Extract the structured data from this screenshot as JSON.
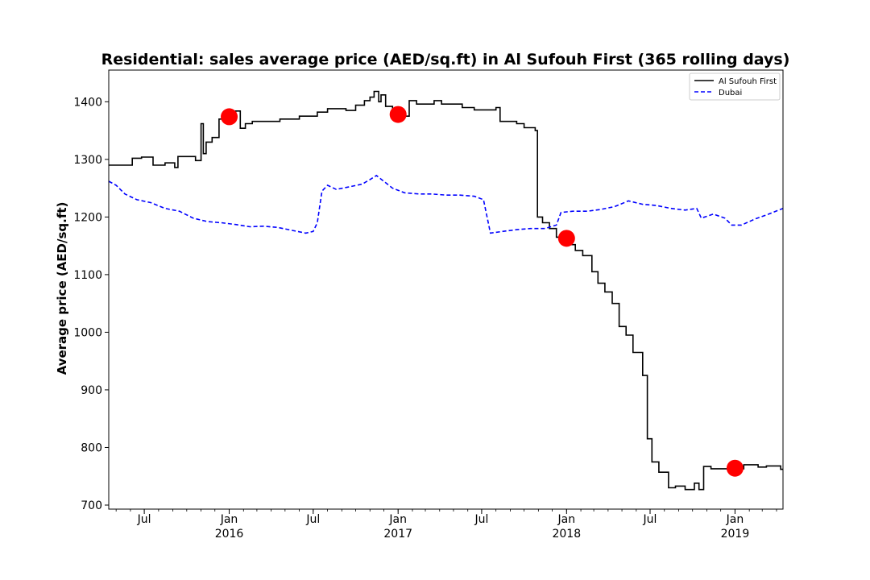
{
  "chart_data": {
    "type": "line",
    "title": "Residential: sales average price (AED/sq.ft) in Al Sufouh First (365 rolling days)",
    "xlabel": "",
    "ylabel": "Average price (AED/sq.ft)",
    "x_range": [
      "2015-04-15",
      "2019-04-15"
    ],
    "ylim": [
      693,
      1455
    ],
    "y_ticks": [
      700,
      800,
      900,
      1000,
      1100,
      1200,
      1300,
      1400
    ],
    "x_ticks": [
      {
        "date": "2015-07-01",
        "label": "Jul",
        "sublabel": ""
      },
      {
        "date": "2016-01-01",
        "label": "Jan",
        "sublabel": "2016"
      },
      {
        "date": "2016-07-01",
        "label": "Jul",
        "sublabel": ""
      },
      {
        "date": "2017-01-01",
        "label": "Jan",
        "sublabel": "2017"
      },
      {
        "date": "2017-07-01",
        "label": "Jul",
        "sublabel": ""
      },
      {
        "date": "2018-01-01",
        "label": "Jan",
        "sublabel": "2018"
      },
      {
        "date": "2018-07-01",
        "label": "Jul",
        "sublabel": ""
      },
      {
        "date": "2019-01-01",
        "label": "Jan",
        "sublabel": "2019"
      }
    ],
    "legend": {
      "position": "top-right"
    },
    "grid": false,
    "series": [
      {
        "name": "Al Sufouh First",
        "color": "#000000",
        "style": "solid",
        "step": true,
        "points": [
          [
            "2015-04-15",
            1290
          ],
          [
            "2015-06-05",
            1290
          ],
          [
            "2015-06-05",
            1302
          ],
          [
            "2015-06-25",
            1302
          ],
          [
            "2015-06-25",
            1304
          ],
          [
            "2015-07-20",
            1304
          ],
          [
            "2015-07-20",
            1290
          ],
          [
            "2015-08-15",
            1290
          ],
          [
            "2015-08-15",
            1294
          ],
          [
            "2015-09-05",
            1294
          ],
          [
            "2015-09-05",
            1286
          ],
          [
            "2015-09-12",
            1286
          ],
          [
            "2015-09-12",
            1305
          ],
          [
            "2015-10-20",
            1305
          ],
          [
            "2015-10-20",
            1298
          ],
          [
            "2015-11-01",
            1298
          ],
          [
            "2015-11-01",
            1362
          ],
          [
            "2015-11-06",
            1362
          ],
          [
            "2015-11-06",
            1310
          ],
          [
            "2015-11-12",
            1310
          ],
          [
            "2015-11-12",
            1330
          ],
          [
            "2015-11-25",
            1330
          ],
          [
            "2015-11-25",
            1338
          ],
          [
            "2015-12-10",
            1338
          ],
          [
            "2015-12-10",
            1370
          ],
          [
            "2016-01-15",
            1370
          ],
          [
            "2016-01-15",
            1384
          ],
          [
            "2016-01-25",
            1384
          ],
          [
            "2016-01-25",
            1354
          ],
          [
            "2016-02-05",
            1354
          ],
          [
            "2016-02-05",
            1362
          ],
          [
            "2016-02-20",
            1362
          ],
          [
            "2016-02-20",
            1366
          ],
          [
            "2016-04-20",
            1366
          ],
          [
            "2016-04-20",
            1370
          ],
          [
            "2016-06-01",
            1370
          ],
          [
            "2016-06-01",
            1375
          ],
          [
            "2016-07-10",
            1375
          ],
          [
            "2016-07-10",
            1382
          ],
          [
            "2016-08-01",
            1382
          ],
          [
            "2016-08-01",
            1388
          ],
          [
            "2016-09-10",
            1388
          ],
          [
            "2016-09-10",
            1385
          ],
          [
            "2016-10-01",
            1385
          ],
          [
            "2016-10-01",
            1394
          ],
          [
            "2016-10-20",
            1394
          ],
          [
            "2016-10-20",
            1402
          ],
          [
            "2016-11-01",
            1402
          ],
          [
            "2016-11-01",
            1408
          ],
          [
            "2016-11-10",
            1408
          ],
          [
            "2016-11-10",
            1418
          ],
          [
            "2016-11-20",
            1418
          ],
          [
            "2016-11-20",
            1400
          ],
          [
            "2016-11-25",
            1400
          ],
          [
            "2016-11-25",
            1412
          ],
          [
            "2016-12-05",
            1412
          ],
          [
            "2016-12-05",
            1392
          ],
          [
            "2016-12-20",
            1392
          ],
          [
            "2016-12-20",
            1384
          ],
          [
            "2017-01-15",
            1384
          ],
          [
            "2017-01-15",
            1375
          ],
          [
            "2017-01-25",
            1375
          ],
          [
            "2017-01-25",
            1402
          ],
          [
            "2017-02-10",
            1402
          ],
          [
            "2017-02-10",
            1396
          ],
          [
            "2017-03-20",
            1396
          ],
          [
            "2017-03-20",
            1402
          ],
          [
            "2017-04-05",
            1402
          ],
          [
            "2017-04-05",
            1396
          ],
          [
            "2017-05-20",
            1396
          ],
          [
            "2017-05-20",
            1390
          ],
          [
            "2017-06-15",
            1390
          ],
          [
            "2017-06-15",
            1386
          ],
          [
            "2017-08-01",
            1386
          ],
          [
            "2017-08-01",
            1390
          ],
          [
            "2017-08-10",
            1390
          ],
          [
            "2017-08-10",
            1366
          ],
          [
            "2017-09-15",
            1366
          ],
          [
            "2017-09-15",
            1362
          ],
          [
            "2017-10-01",
            1362
          ],
          [
            "2017-10-01",
            1355
          ],
          [
            "2017-10-25",
            1355
          ],
          [
            "2017-10-25",
            1350
          ],
          [
            "2017-10-30",
            1350
          ],
          [
            "2017-10-30",
            1200
          ],
          [
            "2017-11-10",
            1200
          ],
          [
            "2017-11-10",
            1190
          ],
          [
            "2017-11-25",
            1190
          ],
          [
            "2017-11-25",
            1180
          ],
          [
            "2017-12-10",
            1180
          ],
          [
            "2017-12-10",
            1165
          ],
          [
            "2018-01-01",
            1165
          ],
          [
            "2018-01-01",
            1152
          ],
          [
            "2018-01-20",
            1152
          ],
          [
            "2018-01-20",
            1142
          ],
          [
            "2018-02-05",
            1142
          ],
          [
            "2018-02-05",
            1133
          ],
          [
            "2018-02-25",
            1133
          ],
          [
            "2018-02-25",
            1105
          ],
          [
            "2018-03-10",
            1105
          ],
          [
            "2018-03-10",
            1085
          ],
          [
            "2018-03-25",
            1085
          ],
          [
            "2018-03-25",
            1070
          ],
          [
            "2018-04-10",
            1070
          ],
          [
            "2018-04-10",
            1050
          ],
          [
            "2018-04-25",
            1050
          ],
          [
            "2018-04-25",
            1010
          ],
          [
            "2018-05-10",
            1010
          ],
          [
            "2018-05-10",
            995
          ],
          [
            "2018-05-25",
            995
          ],
          [
            "2018-05-25",
            965
          ],
          [
            "2018-06-15",
            965
          ],
          [
            "2018-06-15",
            925
          ],
          [
            "2018-06-25",
            925
          ],
          [
            "2018-06-25",
            815
          ],
          [
            "2018-07-05",
            815
          ],
          [
            "2018-07-05",
            775
          ],
          [
            "2018-07-20",
            775
          ],
          [
            "2018-07-20",
            757
          ],
          [
            "2018-08-10",
            757
          ],
          [
            "2018-08-10",
            730
          ],
          [
            "2018-08-25",
            730
          ],
          [
            "2018-08-25",
            733
          ],
          [
            "2018-09-15",
            733
          ],
          [
            "2018-09-15",
            727
          ],
          [
            "2018-10-05",
            727
          ],
          [
            "2018-10-05",
            738
          ],
          [
            "2018-10-15",
            738
          ],
          [
            "2018-10-15",
            727
          ],
          [
            "2018-10-25",
            727
          ],
          [
            "2018-10-25",
            767
          ],
          [
            "2018-11-10",
            767
          ],
          [
            "2018-11-10",
            763
          ],
          [
            "2019-01-20",
            763
          ],
          [
            "2019-01-20",
            770
          ],
          [
            "2019-02-20",
            770
          ],
          [
            "2019-02-20",
            766
          ],
          [
            "2019-03-10",
            766
          ],
          [
            "2019-03-10",
            768
          ],
          [
            "2019-04-10",
            768
          ],
          [
            "2019-04-10",
            762
          ],
          [
            "2019-04-15",
            762
          ]
        ]
      },
      {
        "name": "Dubai",
        "color": "#0000ff",
        "style": "dashed",
        "step": false,
        "points": [
          [
            "2015-04-15",
            1262
          ],
          [
            "2015-05-01",
            1255
          ],
          [
            "2015-05-20",
            1240
          ],
          [
            "2015-06-15",
            1230
          ],
          [
            "2015-07-15",
            1225
          ],
          [
            "2015-08-15",
            1215
          ],
          [
            "2015-09-15",
            1210
          ],
          [
            "2015-10-15",
            1198
          ],
          [
            "2015-11-15",
            1192
          ],
          [
            "2015-12-15",
            1190
          ],
          [
            "2016-01-15",
            1187
          ],
          [
            "2016-02-15",
            1183
          ],
          [
            "2016-03-15",
            1184
          ],
          [
            "2016-04-15",
            1182
          ],
          [
            "2016-05-15",
            1177
          ],
          [
            "2016-06-15",
            1172
          ],
          [
            "2016-07-01",
            1175
          ],
          [
            "2016-07-10",
            1190
          ],
          [
            "2016-07-20",
            1245
          ],
          [
            "2016-08-01",
            1255
          ],
          [
            "2016-08-20",
            1248
          ],
          [
            "2016-09-15",
            1252
          ],
          [
            "2016-10-15",
            1257
          ],
          [
            "2016-11-01",
            1265
          ],
          [
            "2016-11-15",
            1272
          ],
          [
            "2016-12-01",
            1262
          ],
          [
            "2016-12-20",
            1250
          ],
          [
            "2017-01-15",
            1242
          ],
          [
            "2017-02-15",
            1240
          ],
          [
            "2017-03-15",
            1240
          ],
          [
            "2017-04-15",
            1238
          ],
          [
            "2017-05-15",
            1238
          ],
          [
            "2017-06-15",
            1236
          ],
          [
            "2017-07-05",
            1230
          ],
          [
            "2017-07-20",
            1172
          ],
          [
            "2017-08-15",
            1175
          ],
          [
            "2017-09-15",
            1178
          ],
          [
            "2017-10-15",
            1180
          ],
          [
            "2017-11-15",
            1180
          ],
          [
            "2017-12-10",
            1186
          ],
          [
            "2017-12-20",
            1208
          ],
          [
            "2018-01-15",
            1210
          ],
          [
            "2018-02-15",
            1210
          ],
          [
            "2018-03-15",
            1213
          ],
          [
            "2018-04-15",
            1218
          ],
          [
            "2018-05-15",
            1228
          ],
          [
            "2018-06-15",
            1222
          ],
          [
            "2018-07-15",
            1220
          ],
          [
            "2018-08-15",
            1215
          ],
          [
            "2018-09-15",
            1212
          ],
          [
            "2018-10-10",
            1215
          ],
          [
            "2018-10-20",
            1198
          ],
          [
            "2018-11-15",
            1205
          ],
          [
            "2018-12-10",
            1198
          ],
          [
            "2018-12-25",
            1186
          ],
          [
            "2019-01-15",
            1186
          ],
          [
            "2019-02-15",
            1197
          ],
          [
            "2019-03-15",
            1205
          ],
          [
            "2019-04-15",
            1215
          ]
        ]
      }
    ],
    "markers": {
      "color": "#ff0000",
      "points": [
        [
          "2016-01-01",
          1374
        ],
        [
          "2017-01-01",
          1378
        ],
        [
          "2018-01-01",
          1163
        ],
        [
          "2019-01-01",
          764
        ]
      ]
    }
  }
}
